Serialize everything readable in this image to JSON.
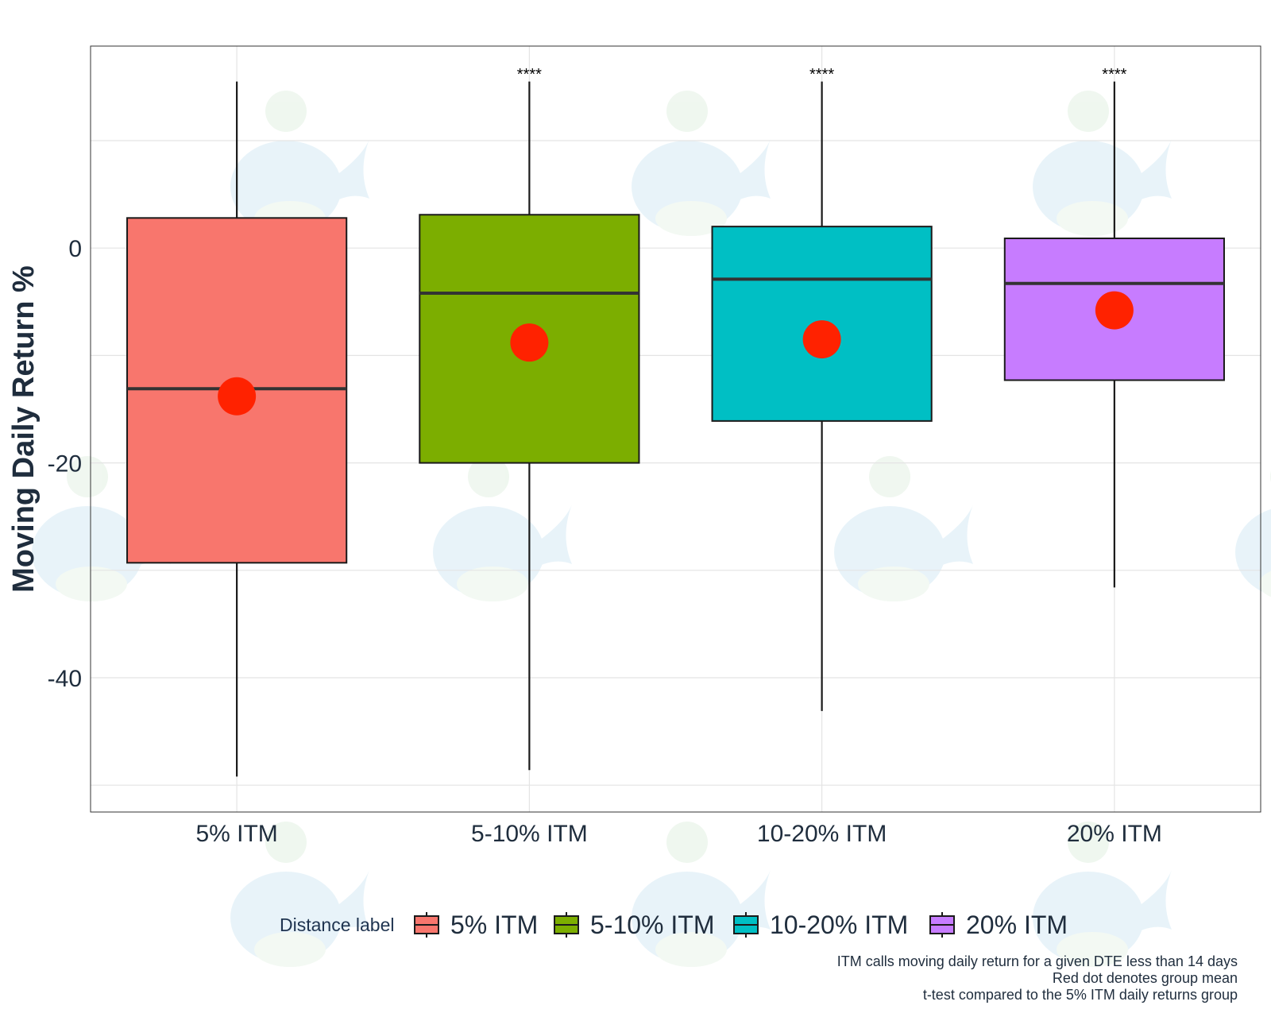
{
  "chart_data": {
    "type": "boxplot",
    "title": "",
    "xlabel": "",
    "ylabel": "Moving Daily Return %",
    "ylim": [
      -52.5,
      18.8
    ],
    "yticks": [
      0,
      -20,
      -40
    ],
    "ytick_labels": [
      "0",
      "-20",
      "-40"
    ],
    "grid": true,
    "categories": [
      "5% ITM",
      "5-10% ITM",
      "10-20% ITM",
      "20% ITM"
    ],
    "colors": [
      "#F8766D",
      "#7CAE00",
      "#00BFC4",
      "#C77CFF"
    ],
    "mean_color": "#FF2200",
    "series": [
      {
        "name": "5% ITM",
        "whisker_low": -49.2,
        "q1": -29.3,
        "median": -13.1,
        "q3": 2.8,
        "whisker_high": 15.5,
        "mean": -13.8,
        "significance": ""
      },
      {
        "name": "5-10% ITM",
        "whisker_low": -48.6,
        "q1": -20.0,
        "median": -4.2,
        "q3": 3.1,
        "whisker_high": 15.5,
        "mean": -8.8,
        "significance": "****"
      },
      {
        "name": "10-20% ITM",
        "whisker_low": -43.1,
        "q1": -16.1,
        "median": -2.9,
        "q3": 2.0,
        "whisker_high": 15.5,
        "mean": -8.5,
        "significance": "****"
      },
      {
        "name": "20% ITM",
        "whisker_low": -31.6,
        "q1": -12.3,
        "median": -3.3,
        "q3": 0.9,
        "whisker_high": 15.5,
        "mean": -5.8,
        "significance": "****"
      }
    ],
    "legend": {
      "title": "Distance label",
      "position": "bottom",
      "entries": [
        "5% ITM",
        "5-10% ITM",
        "10-20% ITM",
        "20% ITM"
      ]
    },
    "caption": [
      "ITM calls moving daily return for a given DTE less than 14 days",
      "Red dot denotes group mean",
      "t-test compared to the 5% ITM daily returns group"
    ]
  }
}
